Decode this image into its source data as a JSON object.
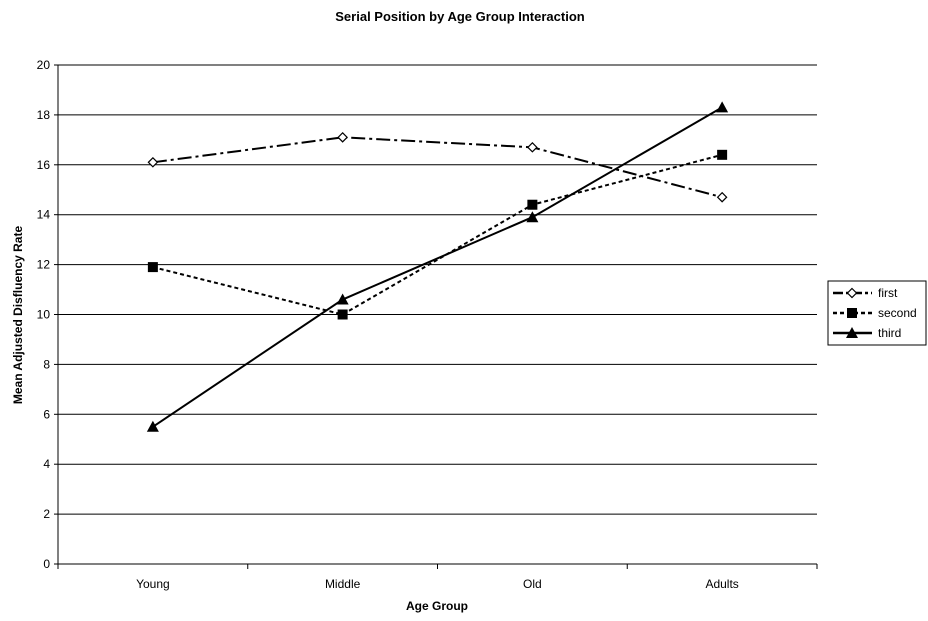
{
  "chart_data": {
    "type": "line",
    "title": "Serial Position by Age Group Interaction",
    "xlabel": "Age Group",
    "ylabel": "Mean Adjusted Disfluency Rate",
    "categories": [
      "Young",
      "Middle",
      "Old",
      "Adults"
    ],
    "ylim": [
      0,
      20
    ],
    "yticks": [
      "0",
      "2",
      "4",
      "6",
      "8",
      "10",
      "12",
      "14",
      "16",
      "18",
      "20"
    ],
    "grid": true,
    "legend_position": "right",
    "series": [
      {
        "name": "first",
        "values": [
          16.1,
          17.1,
          16.7,
          14.7
        ],
        "marker": "diamond-open",
        "dash": "dashdot",
        "color": "#000000"
      },
      {
        "name": "second",
        "values": [
          11.9,
          10.0,
          14.4,
          16.4
        ],
        "marker": "square",
        "dash": "dotted",
        "color": "#000000"
      },
      {
        "name": "third",
        "values": [
          5.5,
          10.6,
          13.9,
          18.3
        ],
        "marker": "triangle",
        "dash": "solid",
        "color": "#000000"
      }
    ]
  }
}
